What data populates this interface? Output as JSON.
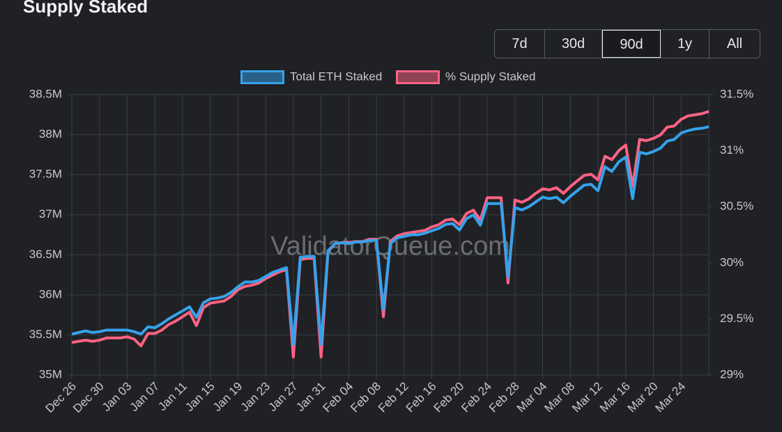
{
  "header": {
    "title": "Supply Staked"
  },
  "range_buttons": [
    "7d",
    "30d",
    "90d",
    "1y",
    "All"
  ],
  "selected_button": "90d",
  "chart_data": {
    "type": "line",
    "watermark": "ValidatorQueue.com",
    "categories": [
      "Dec 26",
      null,
      null,
      null,
      "Dec 30",
      null,
      null,
      null,
      "Jan 03",
      null,
      null,
      null,
      "Jan 07",
      null,
      null,
      null,
      "Jan 11",
      null,
      null,
      null,
      "Jan 15",
      null,
      null,
      null,
      "Jan 19",
      null,
      null,
      null,
      "Jan 23",
      null,
      null,
      null,
      "Jan 27",
      null,
      null,
      null,
      "Jan 31",
      null,
      null,
      null,
      "Feb 04",
      null,
      null,
      null,
      "Feb 08",
      null,
      null,
      null,
      "Feb 12",
      null,
      null,
      null,
      "Feb 16",
      null,
      null,
      null,
      "Feb 20",
      null,
      null,
      null,
      "Feb 24",
      null,
      null,
      null,
      "Feb 28",
      null,
      null,
      null,
      "Mar 04",
      null,
      null,
      null,
      "Mar 08",
      null,
      null,
      null,
      "Mar 12",
      null,
      null,
      null,
      "Mar 16",
      null,
      null,
      null,
      "Mar 20",
      null,
      null,
      null,
      "Mar 24",
      null,
      null,
      null,
      null
    ],
    "series": [
      {
        "name": "Total ETH Staked",
        "color": "#36a2eb",
        "axis": "y",
        "values": [
          35.51,
          35.53,
          35.55,
          35.53,
          35.54,
          35.56,
          35.56,
          35.56,
          35.56,
          35.54,
          35.51,
          35.6,
          35.59,
          35.64,
          35.7,
          35.75,
          35.8,
          35.85,
          35.72,
          35.9,
          35.95,
          35.96,
          35.98,
          36.03,
          36.1,
          36.16,
          36.16,
          36.18,
          36.23,
          36.28,
          36.31,
          36.34,
          35.38,
          36.47,
          36.48,
          36.48,
          35.38,
          36.55,
          36.64,
          36.65,
          36.64,
          36.66,
          36.66,
          36.68,
          36.68,
          35.82,
          36.64,
          36.71,
          36.73,
          36.75,
          36.75,
          36.77,
          36.8,
          36.83,
          36.88,
          36.89,
          36.81,
          36.95,
          37.0,
          36.87,
          37.14,
          37.14,
          37.14,
          36.22,
          37.09,
          37.06,
          37.1,
          37.16,
          37.22,
          37.2,
          37.22,
          37.15,
          37.23,
          37.3,
          37.37,
          37.38,
          37.3,
          37.6,
          37.54,
          37.66,
          37.72,
          37.2,
          37.78,
          37.76,
          37.79,
          37.83,
          37.92,
          37.94,
          38.02,
          38.05,
          38.07,
          38.08,
          38.1
        ]
      },
      {
        "name": "% Supply Staked",
        "color": "#ff6384",
        "axis": "y2",
        "values": [
          29.29,
          29.3,
          29.31,
          29.3,
          29.31,
          29.33,
          29.33,
          29.33,
          29.34,
          29.32,
          29.26,
          29.37,
          29.37,
          29.4,
          29.45,
          29.48,
          29.52,
          29.56,
          29.44,
          29.6,
          29.64,
          29.65,
          29.66,
          29.7,
          29.76,
          29.79,
          29.8,
          29.82,
          29.86,
          29.89,
          29.92,
          29.94,
          29.16,
          30.03,
          30.04,
          30.04,
          29.16,
          30.1,
          30.17,
          30.18,
          30.18,
          30.19,
          30.19,
          30.21,
          30.21,
          29.52,
          30.19,
          30.24,
          30.26,
          30.27,
          30.28,
          30.29,
          30.32,
          30.34,
          30.38,
          30.39,
          30.34,
          30.44,
          30.47,
          30.38,
          30.58,
          30.58,
          30.58,
          29.82,
          30.56,
          30.54,
          30.57,
          30.62,
          30.66,
          30.65,
          30.67,
          30.62,
          30.68,
          30.73,
          30.78,
          30.79,
          30.74,
          30.95,
          30.92,
          31.0,
          31.05,
          30.68,
          31.1,
          31.09,
          31.11,
          31.14,
          31.21,
          31.22,
          31.28,
          31.31,
          31.32,
          31.33,
          31.35
        ]
      }
    ],
    "ylim": [
      35,
      38.5
    ],
    "yticks": [
      {
        "value": 35,
        "label": "35M"
      },
      {
        "value": 35.5,
        "label": "35.5M"
      },
      {
        "value": 36,
        "label": "36M"
      },
      {
        "value": 36.5,
        "label": "36.5M"
      },
      {
        "value": 37,
        "label": "37M"
      },
      {
        "value": 37.5,
        "label": "37.5M"
      },
      {
        "value": 38,
        "label": "38M"
      },
      {
        "value": 38.5,
        "label": "38.5M"
      }
    ],
    "y2lim": [
      29,
      31.5
    ],
    "y2ticks": [
      {
        "value": 29,
        "label": "29%"
      },
      {
        "value": 29.5,
        "label": "29.5%"
      },
      {
        "value": 30,
        "label": "30%"
      },
      {
        "value": 30.5,
        "label": "30.5%"
      },
      {
        "value": 31,
        "label": "31%"
      },
      {
        "value": 31.5,
        "label": "31.5%"
      }
    ],
    "grid": true,
    "legend": "top"
  }
}
